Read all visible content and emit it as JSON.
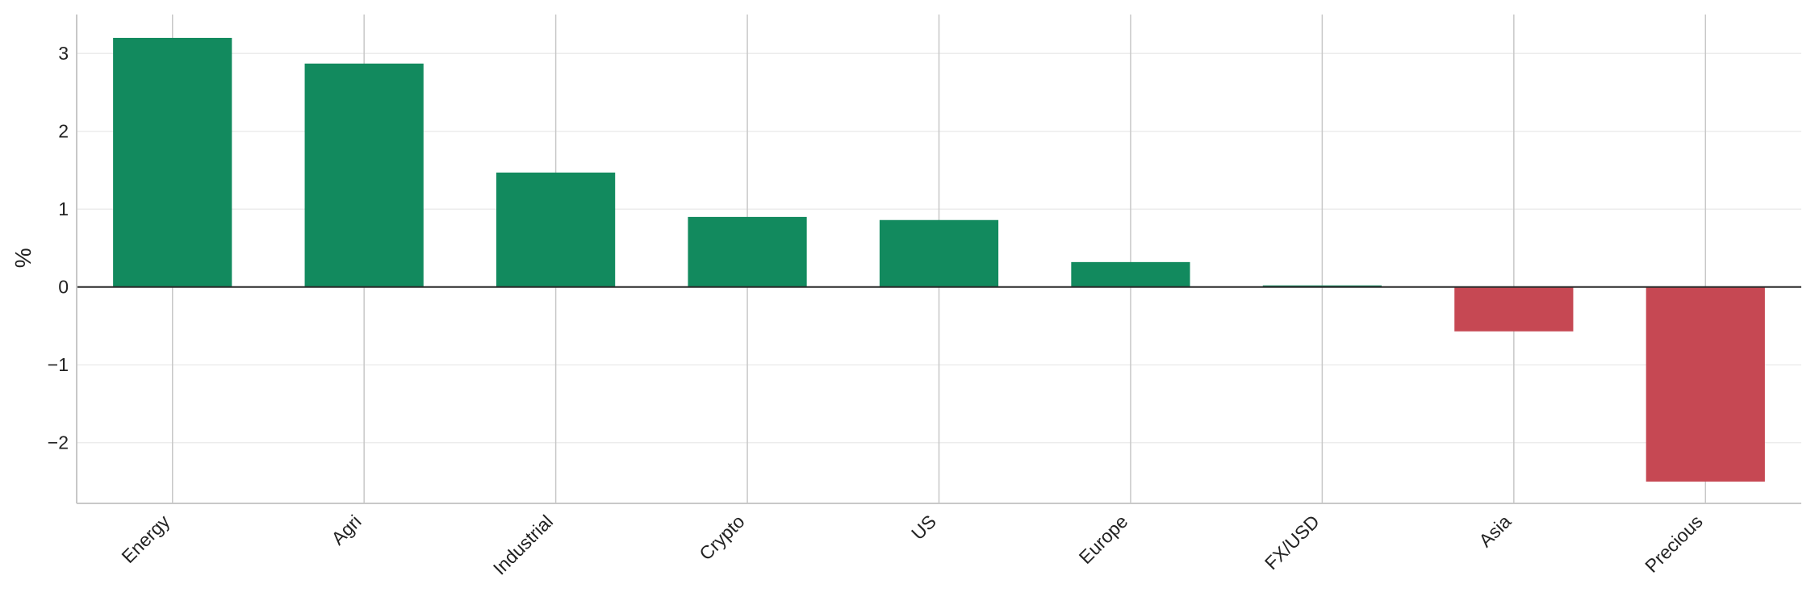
{
  "chart_data": {
    "type": "bar",
    "categories": [
      "Energy",
      "Agri",
      "Industrial",
      "Crypto",
      "US",
      "Europe",
      "FX/USD",
      "Asia",
      "Precious"
    ],
    "values": [
      3.2,
      2.87,
      1.47,
      0.9,
      0.86,
      0.32,
      0.02,
      -0.57,
      -2.5
    ],
    "ylabel": "%",
    "ylim": [
      -2.78,
      3.5
    ],
    "yticks": [
      -2,
      -1,
      0,
      1,
      2,
      3
    ],
    "ytick_labels": [
      "−2",
      "−1",
      "0",
      "1",
      "2",
      "3"
    ],
    "grid": true,
    "colors": {
      "positive": "#128a5e",
      "negative": "#c64853",
      "zero_line": "#2a2a2a",
      "grid": "#c8c8c8",
      "grid_minor": "#ececec",
      "axis": "#c8c8c8"
    }
  }
}
